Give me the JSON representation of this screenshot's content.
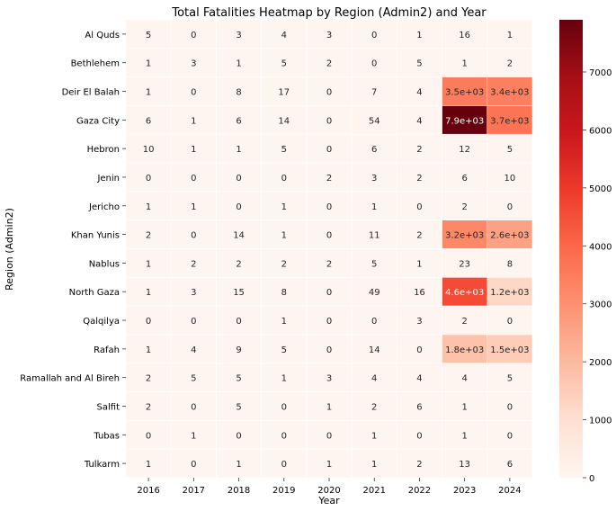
{
  "chart_data": {
    "type": "heatmap",
    "title": "Total Fatalities Heatmap by Region (Admin2) and Year",
    "xlabel": "Year",
    "ylabel": "Region (Admin2)",
    "x_categories": [
      "2016",
      "2017",
      "2018",
      "2019",
      "2020",
      "2021",
      "2022",
      "2023",
      "2024"
    ],
    "y_categories": [
      "Al Quds",
      "Bethlehem",
      "Deir El Balah",
      "Gaza City",
      "Hebron",
      "Jenin",
      "Jericho",
      "Khan Yunis",
      "Nablus",
      "North Gaza",
      "Qalqilya",
      "Rafah",
      "Ramallah and Al Bireh",
      "Salfit",
      "Tubas",
      "Tulkarm"
    ],
    "values": [
      [
        5,
        0,
        3,
        4,
        3,
        0,
        1,
        16,
        1
      ],
      [
        1,
        3,
        1,
        5,
        2,
        0,
        5,
        1,
        2
      ],
      [
        1,
        0,
        8,
        17,
        0,
        7,
        4,
        3500,
        3400
      ],
      [
        6,
        1,
        6,
        14,
        0,
        54,
        4,
        7900,
        3700
      ],
      [
        10,
        1,
        1,
        5,
        0,
        6,
        2,
        12,
        5
      ],
      [
        0,
        0,
        0,
        0,
        2,
        3,
        2,
        6,
        10
      ],
      [
        1,
        1,
        0,
        1,
        0,
        1,
        0,
        2,
        0
      ],
      [
        2,
        0,
        14,
        1,
        0,
        11,
        2,
        3200,
        2600
      ],
      [
        1,
        2,
        2,
        2,
        2,
        5,
        1,
        23,
        8
      ],
      [
        1,
        3,
        15,
        8,
        0,
        49,
        16,
        4600,
        1200
      ],
      [
        0,
        0,
        0,
        1,
        0,
        0,
        3,
        2,
        0
      ],
      [
        1,
        4,
        9,
        5,
        0,
        14,
        0,
        1800,
        1500
      ],
      [
        2,
        5,
        5,
        1,
        3,
        4,
        4,
        4,
        5
      ],
      [
        2,
        0,
        5,
        0,
        1,
        2,
        6,
        1,
        0
      ],
      [
        0,
        1,
        0,
        0,
        0,
        1,
        0,
        1,
        0
      ],
      [
        1,
        0,
        1,
        0,
        1,
        1,
        2,
        13,
        6
      ]
    ],
    "annotations": [
      [
        "5",
        "0",
        "3",
        "4",
        "3",
        "0",
        "1",
        "16",
        "1"
      ],
      [
        "1",
        "3",
        "1",
        "5",
        "2",
        "0",
        "5",
        "1",
        "2"
      ],
      [
        "1",
        "0",
        "8",
        "17",
        "0",
        "7",
        "4",
        "3.5e+03",
        "3.4e+03"
      ],
      [
        "6",
        "1",
        "6",
        "14",
        "0",
        "54",
        "4",
        "7.9e+03",
        "3.7e+03"
      ],
      [
        "10",
        "1",
        "1",
        "5",
        "0",
        "6",
        "2",
        "12",
        "5"
      ],
      [
        "0",
        "0",
        "0",
        "0",
        "2",
        "3",
        "2",
        "6",
        "10"
      ],
      [
        "1",
        "1",
        "0",
        "1",
        "0",
        "1",
        "0",
        "2",
        "0"
      ],
      [
        "2",
        "0",
        "14",
        "1",
        "0",
        "11",
        "2",
        "3.2e+03",
        "2.6e+03"
      ],
      [
        "1",
        "2",
        "2",
        "2",
        "2",
        "5",
        "1",
        "23",
        "8"
      ],
      [
        "1",
        "3",
        "15",
        "8",
        "0",
        "49",
        "16",
        "4.6e+03",
        "1.2e+03"
      ],
      [
        "0",
        "0",
        "0",
        "1",
        "0",
        "0",
        "3",
        "2",
        "0"
      ],
      [
        "1",
        "4",
        "9",
        "5",
        "0",
        "14",
        "0",
        "1.8e+03",
        "1.5e+03"
      ],
      [
        "2",
        "5",
        "5",
        "1",
        "3",
        "4",
        "4",
        "4",
        "5"
      ],
      [
        "2",
        "0",
        "5",
        "0",
        "1",
        "2",
        "6",
        "1",
        "0"
      ],
      [
        "0",
        "1",
        "0",
        "0",
        "0",
        "1",
        "0",
        "1",
        "0"
      ],
      [
        "1",
        "0",
        "1",
        "0",
        "1",
        "1",
        "2",
        "13",
        "6"
      ]
    ],
    "colorscale": "Reds",
    "vmin": 0,
    "vmax": 7900,
    "colorbar_ticks": [
      "0",
      "1000",
      "2000",
      "3000",
      "4000",
      "5000",
      "6000",
      "7000"
    ]
  }
}
